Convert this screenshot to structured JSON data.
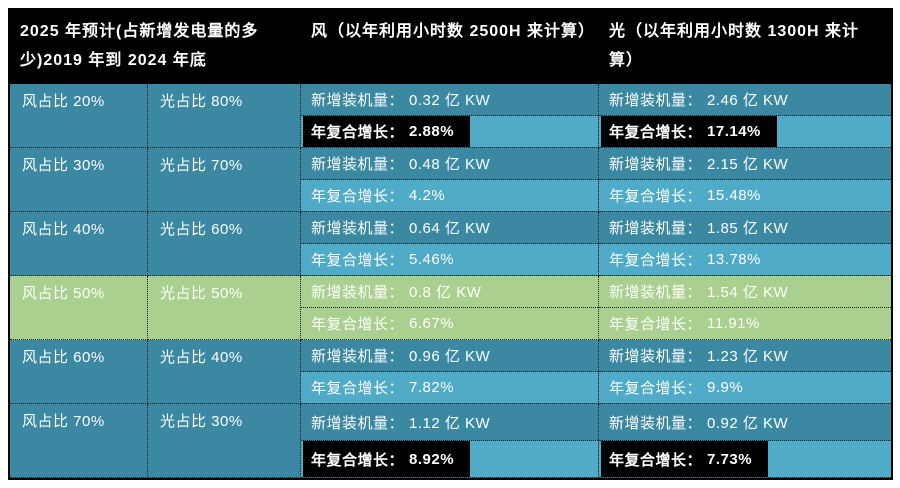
{
  "header": {
    "scenario_col": "2025 年预计(占新增发电量的多少)2019 年到 2024 年底",
    "wind_col": "风（以年利用小时数 2500H 来计算）",
    "solar_col": "光（以年利用小时数 1300H 来计算）"
  },
  "labels": {
    "capacity": "新增装机量：",
    "cagr": "年复合增长："
  },
  "rows": [
    {
      "wind_share": "风占比 20%",
      "solar_share": "光占比 80%",
      "wind_capacity": "0.32 亿 KW",
      "wind_cagr": "2.88%",
      "solar_capacity": "2.46 亿 KW",
      "solar_cagr": "17.14%",
      "cagr_highlighted": true,
      "green": false
    },
    {
      "wind_share": "风占比 30%",
      "solar_share": "光占比 70%",
      "wind_capacity": "0.48 亿 KW",
      "wind_cagr": "4.2%",
      "solar_capacity": "2.15 亿 KW",
      "solar_cagr": "15.48%",
      "cagr_highlighted": false,
      "green": false
    },
    {
      "wind_share": "风占比 40%",
      "solar_share": "光占比 60%",
      "wind_capacity": "0.64 亿 KW",
      "wind_cagr": "5.46%",
      "solar_capacity": "1.85 亿 KW",
      "solar_cagr": "13.78%",
      "cagr_highlighted": false,
      "green": false
    },
    {
      "wind_share": "风占比 50%",
      "solar_share": "光占比 50%",
      "wind_capacity": "0.8 亿 KW",
      "wind_cagr": "6.67%",
      "solar_capacity": "1.54 亿 KW",
      "solar_cagr": "11.91%",
      "cagr_highlighted": false,
      "green": true
    },
    {
      "wind_share": "风占比 60%",
      "solar_share": "光占比 40%",
      "wind_capacity": "0.96 亿 KW",
      "wind_cagr": "7.82%",
      "solar_capacity": "1.23 亿 KW",
      "solar_cagr": "9.9%",
      "cagr_highlighted": false,
      "green": false
    },
    {
      "wind_share": "风占比 70%",
      "solar_share": "光占比 30%",
      "wind_capacity": "1.12 亿 KW",
      "wind_cagr": "8.92%",
      "solar_capacity": "0.92 亿 KW",
      "solar_cagr": "7.73%",
      "cagr_highlighted": true,
      "green": false
    }
  ],
  "colors": {
    "header_bg": "#000000",
    "cell_teal_dark": "#3B88A3",
    "cell_teal_light": "#4FABC8",
    "row_highlight_green": "#A9D08E",
    "text": "#FFFFFF",
    "value_highlight_bg": "#000000"
  },
  "chart_data": {
    "type": "table",
    "title": "2025 年预计(占新增发电量的多少) 2019 年到 2024 年底",
    "assumptions": {
      "wind_utilization_hours": "2500H",
      "solar_utilization_hours": "1300H"
    },
    "columns": [
      "风占比",
      "光占比",
      "风 新增装机量 (亿KW)",
      "风 年复合增长 (%)",
      "光 新增装机量 (亿KW)",
      "光 年复合增长 (%)"
    ],
    "rows": [
      [
        "20%",
        "80%",
        0.32,
        2.88,
        2.46,
        17.14
      ],
      [
        "30%",
        "70%",
        0.48,
        4.2,
        2.15,
        15.48
      ],
      [
        "40%",
        "60%",
        0.64,
        5.46,
        1.85,
        13.78
      ],
      [
        "50%",
        "50%",
        0.8,
        6.67,
        1.54,
        11.91
      ],
      [
        "60%",
        "40%",
        0.96,
        7.82,
        1.23,
        9.9
      ],
      [
        "70%",
        "30%",
        1.12,
        8.92,
        0.92,
        7.73
      ]
    ],
    "highlighted_rows": {
      "green_row": "风占比 50% / 光占比 50%",
      "black_value_rows": [
        "风占比 20%",
        "风占比 70%"
      ]
    }
  }
}
